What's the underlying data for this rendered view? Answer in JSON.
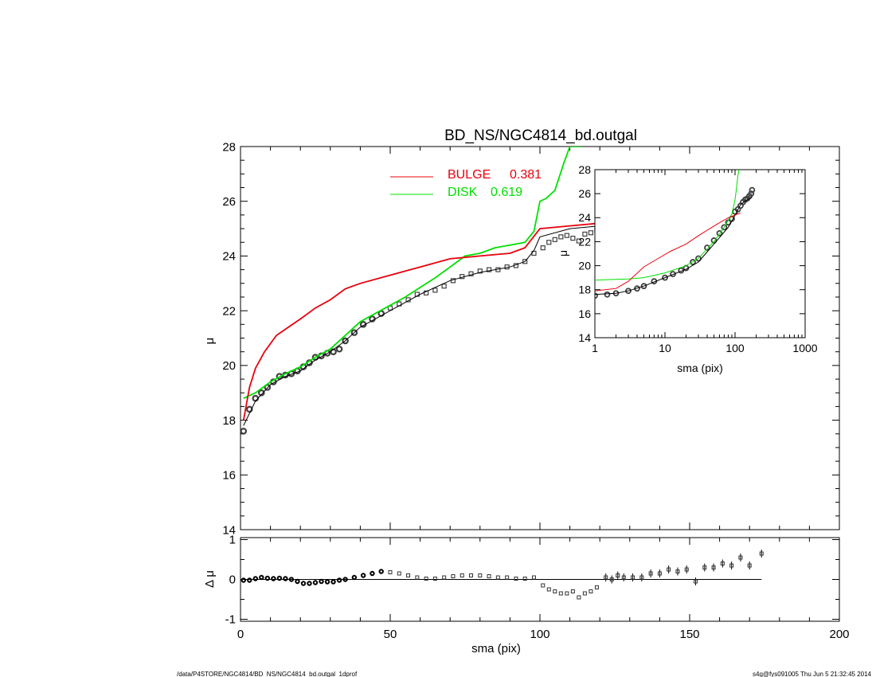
{
  "title": "BD_NS/NGC4814_bd.outgal",
  "footer_left": "/data/P4STORE/NGC4814/BD_NS/NGC4814_bd.outgal_1dprof",
  "footer_right": "s4g@fys091005  Thu Jun  5 21:32:45 2014",
  "colors": {
    "bulge": "#e8000b",
    "disk": "#00e000",
    "data": "#404040",
    "model": "#000000"
  },
  "legend": [
    {
      "label": "BULGE",
      "value": "0.381",
      "color": "#e8000b"
    },
    {
      "label": "DISK",
      "value": "0.619",
      "color": "#00e000"
    }
  ],
  "chart_data": [
    {
      "type": "line",
      "panel": "main",
      "xlabel": "",
      "ylabel": "μ",
      "xlim": [
        0,
        200
      ],
      "ylim": [
        28,
        14
      ],
      "yticks": [
        "14",
        "16",
        "18",
        "20",
        "22",
        "24",
        "26",
        "28"
      ],
      "series": [
        {
          "name": "BULGE",
          "x": [
            1,
            3,
            5,
            8,
            12,
            16,
            20,
            25,
            30,
            35,
            40,
            50,
            60,
            70,
            80,
            90,
            95,
            100,
            110,
            120,
            130,
            140,
            150,
            160,
            175
          ],
          "y": [
            18.0,
            19.2,
            19.9,
            20.5,
            21.1,
            21.4,
            21.7,
            22.1,
            22.4,
            22.8,
            23.0,
            23.3,
            23.6,
            23.9,
            24.0,
            24.1,
            24.3,
            25.0,
            25.1,
            25.2,
            25.3,
            25.35,
            25.4,
            25.5,
            25.7
          ]
        },
        {
          "name": "DISK",
          "x": [
            1,
            5,
            10,
            15,
            20,
            25,
            30,
            35,
            40,
            45,
            50,
            55,
            60,
            65,
            70,
            75,
            80,
            85,
            90,
            95,
            98,
            100,
            102,
            105,
            108,
            110,
            114
          ],
          "y": [
            18.8,
            19.0,
            19.4,
            19.7,
            19.95,
            20.3,
            20.6,
            21.1,
            21.6,
            21.9,
            22.2,
            22.5,
            22.85,
            23.2,
            23.6,
            24.0,
            24.1,
            24.3,
            24.4,
            24.5,
            24.9,
            26.0,
            26.1,
            26.4,
            27.4,
            28.0,
            28.0
          ]
        },
        {
          "name": "model",
          "x": [
            1,
            5,
            10,
            15,
            20,
            25,
            30,
            35,
            40,
            50,
            60,
            70,
            80,
            90,
            95,
            98,
            100,
            110,
            120,
            130,
            140,
            150,
            160,
            175
          ],
          "y": [
            17.8,
            18.7,
            19.3,
            19.6,
            19.8,
            20.2,
            20.5,
            20.9,
            21.4,
            22.0,
            22.6,
            23.1,
            23.4,
            23.6,
            23.8,
            24.2,
            24.7,
            25.0,
            25.1,
            25.3,
            25.35,
            25.4,
            25.5,
            25.7
          ]
        },
        {
          "name": "data",
          "x": [
            1,
            3,
            5,
            7,
            9,
            11,
            13,
            15,
            17,
            19,
            21,
            23,
            25,
            27,
            29,
            31,
            33,
            35,
            38,
            41,
            44,
            47,
            50,
            53,
            56,
            59,
            62,
            65,
            68,
            71,
            74,
            77,
            80,
            83,
            86,
            89,
            92,
            95,
            98,
            101,
            103,
            105,
            107,
            109,
            111,
            113,
            115,
            117,
            119,
            122,
            124,
            126,
            128,
            131,
            134,
            137,
            140,
            143,
            146,
            149,
            152,
            155,
            158,
            161,
            164,
            167,
            170,
            174
          ],
          "y": [
            17.6,
            18.4,
            18.8,
            19.0,
            19.2,
            19.4,
            19.6,
            19.65,
            19.7,
            19.8,
            19.95,
            20.1,
            20.3,
            20.35,
            20.45,
            20.5,
            20.6,
            20.9,
            21.2,
            21.5,
            21.7,
            21.9,
            22.1,
            22.25,
            22.4,
            22.6,
            22.65,
            22.75,
            22.9,
            23.1,
            23.25,
            23.35,
            23.45,
            23.5,
            23.5,
            23.6,
            23.65,
            23.8,
            24.1,
            24.3,
            24.5,
            24.6,
            24.7,
            24.75,
            24.65,
            24.55,
            24.8,
            24.85,
            24.95,
            25.2,
            25.3,
            25.3,
            25.35,
            25.35,
            25.45,
            25.5,
            25.55,
            25.6,
            25.55,
            25.6,
            25.35,
            25.7,
            25.65,
            25.8,
            25.9,
            26.0,
            26.1,
            26.3
          ]
        }
      ]
    },
    {
      "type": "line",
      "panel": "inset",
      "xlabel": "sma (pix)",
      "ylabel": "μ",
      "xscale": "log",
      "xlim": [
        1,
        1000
      ],
      "ylim": [
        28,
        14
      ],
      "xticks": [
        "1",
        "10",
        "100",
        "1000"
      ],
      "yticks": [
        "14",
        "16",
        "18",
        "20",
        "22",
        "24",
        "26",
        "28"
      ],
      "series": [
        {
          "name": "BULGE",
          "x": [
            1,
            2,
            3,
            5,
            8,
            12,
            20,
            30,
            50,
            80,
            120
          ],
          "y": [
            17.9,
            18.1,
            18.7,
            19.9,
            20.6,
            21.2,
            21.8,
            22.5,
            23.3,
            24.0,
            24.4
          ]
        },
        {
          "name": "DISK",
          "x": [
            1,
            3,
            5,
            10,
            20,
            30,
            50,
            70,
            90,
            100,
            105,
            110,
            114
          ],
          "y": [
            18.8,
            18.9,
            19.0,
            19.4,
            20.0,
            20.6,
            22.0,
            23.2,
            24.3,
            25.5,
            26.5,
            27.5,
            28.0
          ]
        },
        {
          "name": "model",
          "x": [
            1,
            2,
            3,
            5,
            10,
            20,
            30,
            50,
            80,
            100,
            120,
            150,
            175
          ],
          "y": [
            17.6,
            17.7,
            17.9,
            18.3,
            19.0,
            19.7,
            20.3,
            21.8,
            23.2,
            24.2,
            25.1,
            25.5,
            25.7
          ]
        },
        {
          "name": "data",
          "x": [
            1,
            1.5,
            2,
            3,
            4,
            5,
            7,
            10,
            13,
            17,
            20,
            25,
            30,
            40,
            50,
            60,
            70,
            80,
            90,
            100,
            110,
            120,
            130,
            140,
            150,
            160,
            170,
            175
          ],
          "y": [
            17.5,
            17.6,
            17.7,
            17.9,
            18.1,
            18.3,
            18.7,
            19.0,
            19.3,
            19.6,
            19.8,
            20.3,
            20.6,
            21.5,
            22.1,
            22.7,
            23.2,
            23.6,
            23.9,
            24.5,
            24.7,
            25.0,
            25.3,
            25.5,
            25.6,
            25.8,
            26.0,
            26.3
          ]
        }
      ]
    },
    {
      "type": "scatter",
      "panel": "residual",
      "xlabel": "sma (pix)",
      "ylabel": "Δ μ",
      "xlim": [
        0,
        200
      ],
      "ylim": [
        -1,
        1
      ],
      "xticks": [
        "0",
        "50",
        "100",
        "150",
        "200"
      ],
      "yticks": [
        "1",
        "0",
        "-1"
      ],
      "x": [
        1,
        3,
        5,
        7,
        9,
        11,
        13,
        15,
        17,
        19,
        21,
        23,
        25,
        27,
        29,
        31,
        33,
        35,
        38,
        41,
        44,
        47,
        50,
        53,
        56,
        59,
        62,
        65,
        68,
        71,
        74,
        77,
        80,
        83,
        86,
        89,
        92,
        95,
        98,
        101,
        103,
        105,
        107,
        109,
        111,
        113,
        115,
        117,
        119,
        122,
        124,
        126,
        128,
        131,
        134,
        137,
        140,
        143,
        146,
        149,
        152,
        155,
        158,
        161,
        164,
        167,
        170,
        174
      ],
      "y": [
        -0.02,
        -0.02,
        0.02,
        0.05,
        0.03,
        0.02,
        0.03,
        0.02,
        0.0,
        -0.05,
        -0.1,
        -0.1,
        -0.08,
        -0.05,
        -0.06,
        -0.06,
        -0.02,
        0.0,
        0.05,
        0.1,
        0.15,
        0.2,
        0.18,
        0.15,
        0.1,
        0.05,
        0.02,
        0.02,
        0.05,
        0.08,
        0.1,
        0.1,
        0.1,
        0.08,
        0.05,
        0.05,
        0.02,
        0.02,
        0.05,
        -0.15,
        -0.25,
        -0.3,
        -0.35,
        -0.35,
        -0.3,
        -0.45,
        -0.35,
        -0.3,
        -0.2,
        0.05,
        0.0,
        0.1,
        0.05,
        0.05,
        0.05,
        0.15,
        0.15,
        0.25,
        0.2,
        0.25,
        -0.05,
        0.3,
        0.3,
        0.4,
        0.35,
        0.55,
        0.35,
        0.65
      ]
    }
  ]
}
